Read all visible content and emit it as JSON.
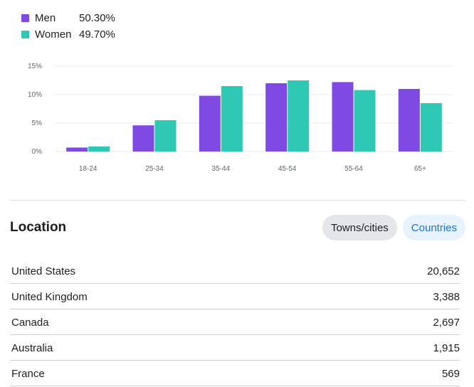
{
  "legend": [
    {
      "name": "Men",
      "value": "50.30%",
      "color": "#7f4ae3"
    },
    {
      "name": "Women",
      "value": "49.70%",
      "color": "#2fc8b4"
    }
  ],
  "chart_data": {
    "type": "bar",
    "categories": [
      "18-24",
      "25-34",
      "35-44",
      "45-54",
      "55-64",
      "65+"
    ],
    "series": [
      {
        "name": "Men",
        "color": "#7f4ae3",
        "values": [
          0.7,
          4.6,
          9.8,
          12.0,
          12.2,
          11.0
        ]
      },
      {
        "name": "Women",
        "color": "#2fc8b4",
        "values": [
          0.9,
          5.5,
          11.5,
          12.5,
          10.8,
          8.5
        ]
      }
    ],
    "yticks": [
      "0%",
      "5%",
      "10%",
      "15%"
    ],
    "ylim": [
      0,
      15
    ],
    "grid": true
  },
  "location": {
    "title": "Location",
    "tabs": {
      "towns": "Towns/cities",
      "countries": "Countries"
    },
    "rows": [
      {
        "name": "United States",
        "value": "20,652"
      },
      {
        "name": "United Kingdom",
        "value": "3,388"
      },
      {
        "name": "Canada",
        "value": "2,697"
      },
      {
        "name": "Australia",
        "value": "1,915"
      },
      {
        "name": "France",
        "value": "569"
      }
    ]
  }
}
